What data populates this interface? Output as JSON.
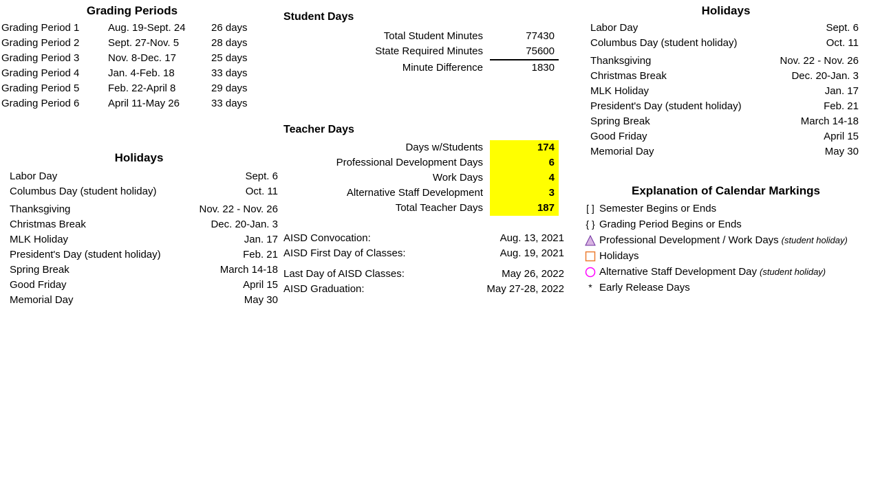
{
  "colors": {
    "highlight": "#ffff00",
    "triangle_fill": "#d8b4e2",
    "triangle_stroke": "#7030a0",
    "square_fill": "#ffffff",
    "square_stroke": "#ed7d31",
    "circle_fill": "#ffffff",
    "circle_stroke": "#ff00ff"
  },
  "grading": {
    "title": "Grading Periods",
    "rows": [
      {
        "name": "Grading Period 1",
        "range": "Aug. 19-Sept. 24",
        "days": "26 days"
      },
      {
        "name": "Grading Period 2",
        "range": "Sept. 27-Nov. 5",
        "days": "28 days"
      },
      {
        "name": "Grading Period 3",
        "range": "Nov. 8-Dec. 17",
        "days": "25 days"
      },
      {
        "name": "Grading Period 4",
        "range": "Jan. 4-Feb. 18",
        "days": "33 days"
      },
      {
        "name": "Grading Period 5",
        "range": "Feb. 22-April 8",
        "days": "29 days"
      },
      {
        "name": "Grading Period 6",
        "range": "April 11-May 26",
        "days": "33 days"
      }
    ]
  },
  "holidays_left": {
    "title": "Holidays",
    "rows": [
      {
        "name": "Labor Day",
        "date": "Sept. 6"
      },
      {
        "name": "Columbus Day (student holiday)",
        "date": "Oct. 11"
      },
      {
        "name": "Thanksgiving",
        "date": "Nov. 22 - Nov. 26"
      },
      {
        "name": "Christmas Break",
        "date": "Dec. 20-Jan. 3"
      },
      {
        "name": "MLK Holiday",
        "date": "Jan. 17"
      },
      {
        "name": "President's Day (student holiday)",
        "date": "Feb. 21"
      },
      {
        "name": "Spring Break",
        "date": "March 14-18"
      },
      {
        "name": "Good Friday",
        "date": "April 15"
      },
      {
        "name": "Memorial Day",
        "date": "May 30"
      }
    ]
  },
  "student_days": {
    "title": "Student Days",
    "rows": [
      {
        "label": "Total Student Minutes",
        "value": "77430",
        "underline": false
      },
      {
        "label": "State Required Minutes",
        "value": "75600",
        "underline": true
      },
      {
        "label": "Minute Difference",
        "value": "1830",
        "underline": false
      }
    ]
  },
  "teacher_days": {
    "title": "Teacher Days",
    "rows": [
      {
        "label": "Days w/Students",
        "value": "174"
      },
      {
        "label": "Professional Development Days",
        "value": "6"
      },
      {
        "label": "Work Days",
        "value": "4"
      },
      {
        "label": "Alternative Staff Development",
        "value": "3"
      },
      {
        "label": "Total Teacher Days",
        "value": "187"
      }
    ]
  },
  "key_dates": {
    "rows": [
      {
        "label": "AISD Convocation:",
        "value": "Aug. 13, 2021"
      },
      {
        "label": "AISD First Day of Classes:",
        "value": "Aug. 19, 2021"
      },
      {
        "label": "Last Day of AISD Classes:",
        "value": "May 26, 2022"
      },
      {
        "label": "AISD Graduation:",
        "value": "May 27-28, 2022"
      }
    ]
  },
  "holidays_right": {
    "title": "Holidays",
    "rows": [
      {
        "name": "Labor Day",
        "date": "Sept. 6"
      },
      {
        "name": "Columbus Day (student holiday)",
        "date": "Oct. 11"
      },
      {
        "name": "Thanksgiving",
        "date": "Nov. 22 - Nov. 26"
      },
      {
        "name": "Christmas Break",
        "date": "Dec. 20-Jan. 3"
      },
      {
        "name": "MLK Holiday",
        "date": "Jan. 17"
      },
      {
        "name": "President's Day (student holiday)",
        "date": "Feb. 21"
      },
      {
        "name": "Spring Break",
        "date": "March 14-18"
      },
      {
        "name": "Good Friday",
        "date": "April 15"
      },
      {
        "name": "Memorial Day",
        "date": "May 30"
      }
    ]
  },
  "markings": {
    "title": "Explanation of Calendar Markings",
    "rows": [
      {
        "symbol": "bracket",
        "label": "Semester Begins or Ends",
        "note": ""
      },
      {
        "symbol": "brace",
        "label": "Grading Period Begins or Ends",
        "note": ""
      },
      {
        "symbol": "triangle",
        "label": "Professional Development / Work Days",
        "note": "(student holiday)"
      },
      {
        "symbol": "square",
        "label": "Holidays",
        "note": ""
      },
      {
        "symbol": "circle",
        "label": "Alternative Staff Development Day",
        "note": "(student holiday)"
      },
      {
        "symbol": "asterisk",
        "label": "Early Release Days",
        "note": ""
      }
    ],
    "symbol_text": {
      "bracket": "[ ]",
      "brace": "{ }",
      "asterisk": "*"
    }
  }
}
